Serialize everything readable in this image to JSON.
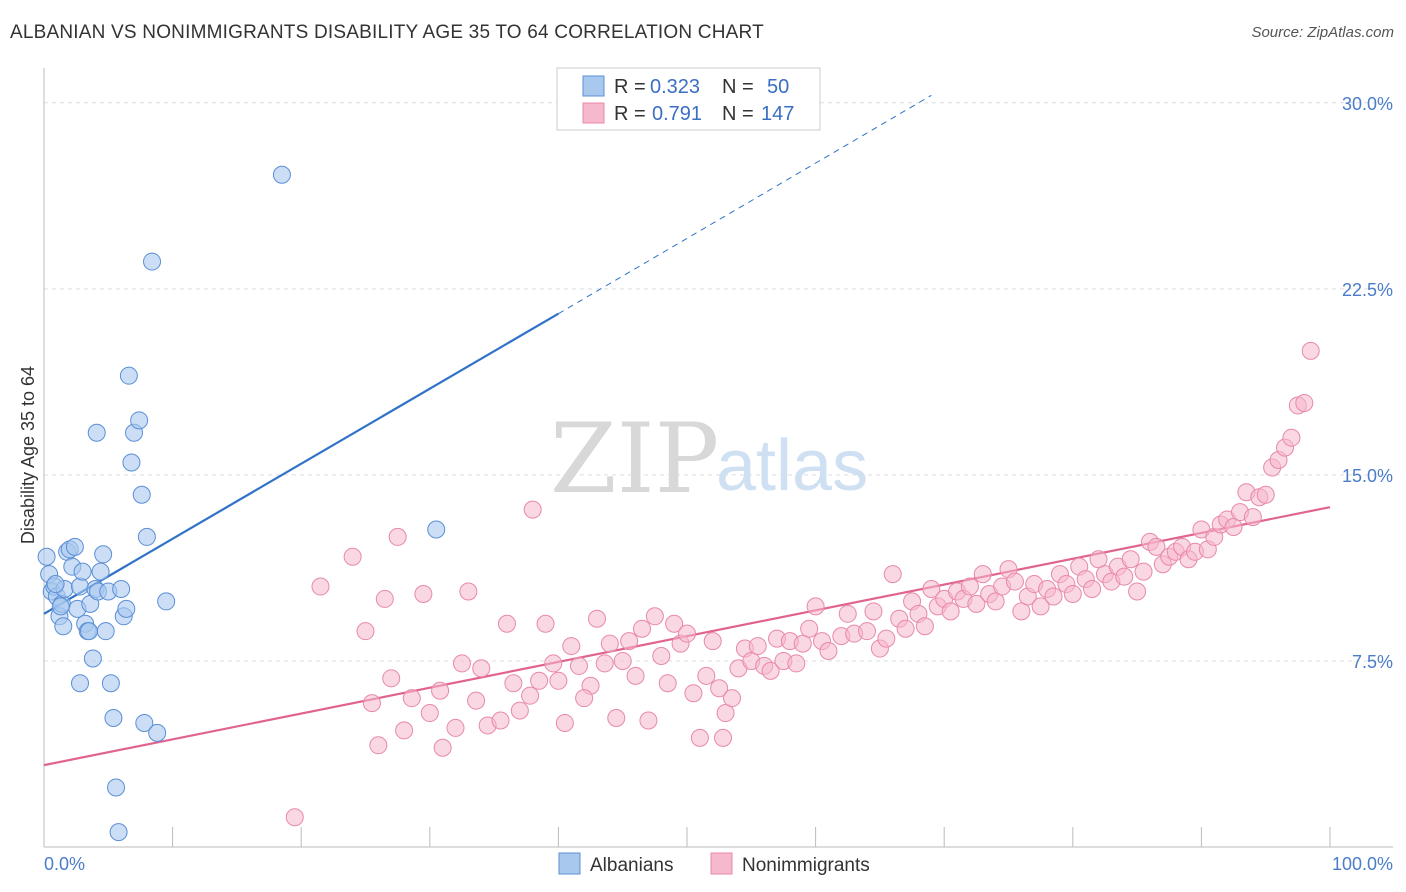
{
  "header": {
    "title": "ALBANIAN VS NONIMMIGRANTS DISABILITY AGE 35 TO 64 CORRELATION CHART",
    "source": "Source: ZipAtlas.com"
  },
  "watermark": {
    "zip": "ZIP",
    "atlas": "atlas"
  },
  "legend": {
    "rows": [
      {
        "r_label": "R =",
        "r_value": "0.323",
        "n_label": "N =",
        "n_value": "50",
        "color": "#a8c8ee"
      },
      {
        "r_label": "R =",
        "r_value": "0.791",
        "n_label": "N =",
        "n_value": "147",
        "color": "#f5b8cc"
      }
    ]
  },
  "bottom_legend": {
    "albanians": "Albanians",
    "nonimmigrants": "Nonimmigrants"
  },
  "colors": {
    "albanians_fill": "#a8c8ee",
    "albanians_stroke": "#5b8fd6",
    "albanians_line": "#2f72c8",
    "nonimmigrants_fill": "#f5b8cc",
    "nonimmigrants_stroke": "#e889a8",
    "nonimmigrants_line": "#e0648f",
    "tick_text": "#4a7cc9",
    "grid": "#dddddd"
  },
  "chart_data": {
    "type": "scatter",
    "title": "ALBANIAN VS NONIMMIGRANTS DISABILITY AGE 35 TO 64 CORRELATION CHART",
    "xlabel": "",
    "ylabel": "Disability Age 35 to 64",
    "xlim": [
      0,
      100
    ],
    "ylim": [
      0,
      31
    ],
    "x_tick_labels": [
      "0.0%",
      "100.0%"
    ],
    "y_ticks": [
      7.5,
      15.0,
      22.5,
      30.0
    ],
    "y_tick_labels": [
      "7.5%",
      "15.0%",
      "22.5%",
      "30.0%"
    ],
    "grid": true,
    "legend_position": "top-center",
    "series": [
      {
        "name": "Albanians",
        "r": 0.323,
        "n": 50,
        "trend": {
          "x0": 0,
          "y0": 9.4,
          "x1": 40,
          "y1": 21.5,
          "dashed_to_x": 69,
          "dashed_to_y": 30.3
        },
        "points": [
          [
            0.2,
            11.7
          ],
          [
            0.4,
            11.0
          ],
          [
            0.6,
            10.3
          ],
          [
            0.8,
            10.5
          ],
          [
            1.0,
            10.1
          ],
          [
            1.2,
            9.3
          ],
          [
            1.4,
            9.8
          ],
          [
            1.5,
            8.9
          ],
          [
            1.6,
            10.4
          ],
          [
            1.8,
            11.9
          ],
          [
            2.0,
            12.0
          ],
          [
            2.2,
            11.3
          ],
          [
            2.4,
            12.1
          ],
          [
            2.6,
            9.6
          ],
          [
            2.8,
            10.5
          ],
          [
            3.0,
            11.1
          ],
          [
            3.2,
            9.0
          ],
          [
            3.4,
            8.7
          ],
          [
            3.6,
            9.8
          ],
          [
            3.8,
            7.6
          ],
          [
            4.0,
            10.4
          ],
          [
            4.2,
            10.3
          ],
          [
            4.4,
            11.1
          ],
          [
            4.6,
            11.8
          ],
          [
            4.8,
            8.7
          ],
          [
            5.0,
            10.3
          ],
          [
            5.2,
            6.6
          ],
          [
            5.4,
            5.2
          ],
          [
            5.6,
            2.4
          ],
          [
            5.8,
            0.6
          ],
          [
            6.0,
            10.4
          ],
          [
            6.2,
            9.3
          ],
          [
            6.4,
            9.6
          ],
          [
            6.6,
            19.0
          ],
          [
            6.8,
            15.5
          ],
          [
            7.0,
            16.7
          ],
          [
            7.4,
            17.2
          ],
          [
            7.6,
            14.2
          ],
          [
            7.8,
            5.0
          ],
          [
            8.0,
            12.5
          ],
          [
            8.4,
            23.6
          ],
          [
            8.8,
            4.6
          ],
          [
            9.5,
            9.9
          ],
          [
            18.5,
            27.1
          ],
          [
            2.8,
            6.6
          ],
          [
            4.1,
            16.7
          ],
          [
            0.9,
            10.6
          ],
          [
            1.3,
            9.7
          ],
          [
            3.5,
            8.7
          ],
          [
            30.5,
            12.8
          ]
        ]
      },
      {
        "name": "Nonimmigrants",
        "r": 0.791,
        "n": 147,
        "trend": {
          "x0": 0,
          "y0": 3.3,
          "x1": 100,
          "y1": 13.7
        },
        "points": [
          [
            19.5,
            1.2
          ],
          [
            21.5,
            10.5
          ],
          [
            24.0,
            11.7
          ],
          [
            25.0,
            8.7
          ],
          [
            25.5,
            5.8
          ],
          [
            26.5,
            10.0
          ],
          [
            27.0,
            6.8
          ],
          [
            27.5,
            12.5
          ],
          [
            28.0,
            4.7
          ],
          [
            29.5,
            10.2
          ],
          [
            30.0,
            5.4
          ],
          [
            31.0,
            4.0
          ],
          [
            32.0,
            4.8
          ],
          [
            32.5,
            7.4
          ],
          [
            33.0,
            10.3
          ],
          [
            34.5,
            4.9
          ],
          [
            35.5,
            5.1
          ],
          [
            36.0,
            9.0
          ],
          [
            37.0,
            5.5
          ],
          [
            38.0,
            13.6
          ],
          [
            38.5,
            6.7
          ],
          [
            39.0,
            9.0
          ],
          [
            40.0,
            6.7
          ],
          [
            41.0,
            8.1
          ],
          [
            42.5,
            6.5
          ],
          [
            43.0,
            9.2
          ],
          [
            44.0,
            8.2
          ],
          [
            45.0,
            7.5
          ],
          [
            45.5,
            8.3
          ],
          [
            46.0,
            6.9
          ],
          [
            47.0,
            5.1
          ],
          [
            47.5,
            9.3
          ],
          [
            48.0,
            7.7
          ],
          [
            49.0,
            9.0
          ],
          [
            49.5,
            8.2
          ],
          [
            50.5,
            6.2
          ],
          [
            51.0,
            4.4
          ],
          [
            51.5,
            6.9
          ],
          [
            52.0,
            8.3
          ],
          [
            52.5,
            6.4
          ],
          [
            53.0,
            5.4
          ],
          [
            53.5,
            6.0
          ],
          [
            54.0,
            7.2
          ],
          [
            54.5,
            8.0
          ],
          [
            55.0,
            7.5
          ],
          [
            55.5,
            8.1
          ],
          [
            56.0,
            7.3
          ],
          [
            56.5,
            7.1
          ],
          [
            57.0,
            8.4
          ],
          [
            57.5,
            7.5
          ],
          [
            58.0,
            8.3
          ],
          [
            58.5,
            7.4
          ],
          [
            59.0,
            8.2
          ],
          [
            59.5,
            8.8
          ],
          [
            60.0,
            9.7
          ],
          [
            60.5,
            8.3
          ],
          [
            61.0,
            7.9
          ],
          [
            62.0,
            8.5
          ],
          [
            62.5,
            9.4
          ],
          [
            63.0,
            8.6
          ],
          [
            64.0,
            8.7
          ],
          [
            64.5,
            9.5
          ],
          [
            65.0,
            8.0
          ],
          [
            65.5,
            8.4
          ],
          [
            66.0,
            11.0
          ],
          [
            66.5,
            9.2
          ],
          [
            67.0,
            8.8
          ],
          [
            67.5,
            9.9
          ],
          [
            68.0,
            9.4
          ],
          [
            68.5,
            8.9
          ],
          [
            69.0,
            10.4
          ],
          [
            69.5,
            9.7
          ],
          [
            70.0,
            10.0
          ],
          [
            70.5,
            9.5
          ],
          [
            71.0,
            10.3
          ],
          [
            71.5,
            10.0
          ],
          [
            72.0,
            10.5
          ],
          [
            72.5,
            9.8
          ],
          [
            73.0,
            11.0
          ],
          [
            73.5,
            10.2
          ],
          [
            74.0,
            9.9
          ],
          [
            74.5,
            10.5
          ],
          [
            75.0,
            11.2
          ],
          [
            75.5,
            10.7
          ],
          [
            76.0,
            9.5
          ],
          [
            76.5,
            10.1
          ],
          [
            77.0,
            10.6
          ],
          [
            77.5,
            9.7
          ],
          [
            78.0,
            10.4
          ],
          [
            78.5,
            10.1
          ],
          [
            79.0,
            11.0
          ],
          [
            79.5,
            10.6
          ],
          [
            80.0,
            10.2
          ],
          [
            80.5,
            11.3
          ],
          [
            81.0,
            10.8
          ],
          [
            81.5,
            10.4
          ],
          [
            82.0,
            11.6
          ],
          [
            82.5,
            11.0
          ],
          [
            83.0,
            10.7
          ],
          [
            83.5,
            11.3
          ],
          [
            84.0,
            10.9
          ],
          [
            84.5,
            11.6
          ],
          [
            85.0,
            10.3
          ],
          [
            85.5,
            11.1
          ],
          [
            86.0,
            12.3
          ],
          [
            86.5,
            12.1
          ],
          [
            87.0,
            11.4
          ],
          [
            87.5,
            11.7
          ],
          [
            88.0,
            11.9
          ],
          [
            88.5,
            12.1
          ],
          [
            89.0,
            11.6
          ],
          [
            89.5,
            11.9
          ],
          [
            90.0,
            12.8
          ],
          [
            90.5,
            12.0
          ],
          [
            91.0,
            12.5
          ],
          [
            91.5,
            13.0
          ],
          [
            92.0,
            13.2
          ],
          [
            92.5,
            12.9
          ],
          [
            93.0,
            13.5
          ],
          [
            93.5,
            14.3
          ],
          [
            94.0,
            13.3
          ],
          [
            94.5,
            14.1
          ],
          [
            95.0,
            14.2
          ],
          [
            95.5,
            15.3
          ],
          [
            96.0,
            15.6
          ],
          [
            96.5,
            16.1
          ],
          [
            97.0,
            16.5
          ],
          [
            97.5,
            17.8
          ],
          [
            98.0,
            17.9
          ],
          [
            98.5,
            20.0
          ],
          [
            36.5,
            6.6
          ],
          [
            40.5,
            5.0
          ],
          [
            42.0,
            6.0
          ],
          [
            44.5,
            5.2
          ],
          [
            46.5,
            8.8
          ],
          [
            48.5,
            6.6
          ],
          [
            50.0,
            8.6
          ],
          [
            52.8,
            4.4
          ],
          [
            34.0,
            7.2
          ],
          [
            30.8,
            6.3
          ],
          [
            28.6,
            6.0
          ],
          [
            26.0,
            4.1
          ],
          [
            33.6,
            5.9
          ],
          [
            37.8,
            6.1
          ],
          [
            39.6,
            7.4
          ],
          [
            41.6,
            7.3
          ],
          [
            43.6,
            7.4
          ]
        ]
      }
    ]
  }
}
